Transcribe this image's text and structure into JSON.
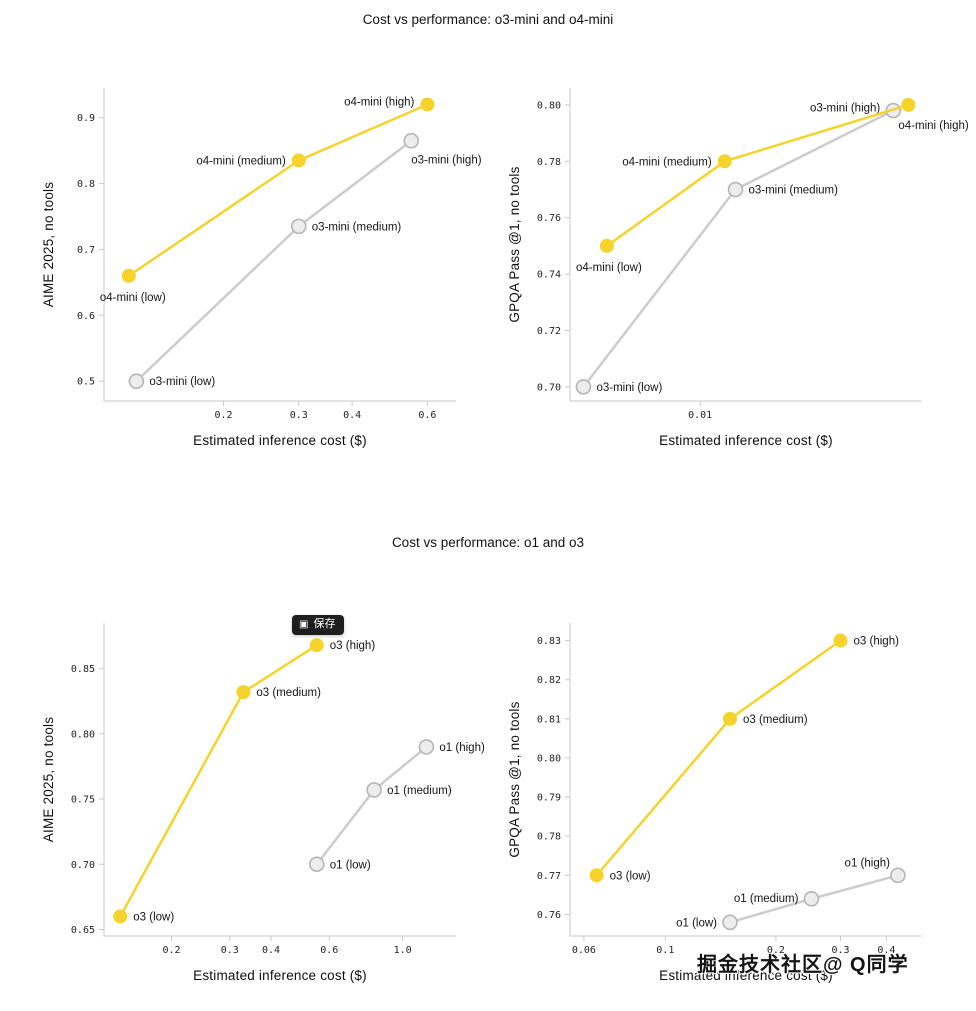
{
  "page": {
    "title_top": "Cost vs performance: o3-mini and o4-mini",
    "title_bottom": "Cost vs performance: o1 and o3",
    "save_badge": {
      "label": "保存"
    },
    "watermark": "掘金技术社区@ Q同学"
  },
  "colors": {
    "yellow": "#f6d32b",
    "gray_line": "#cccccc",
    "gray_fill": "#ededed",
    "gray_stroke": "#b5b5b5",
    "axis": "#c9c9c9",
    "text": "#111111"
  },
  "chart_data": [
    {
      "type": "line",
      "ylabel": "AIME 2025, no tools",
      "xlabel": "Estimated inference cost ($)",
      "x_scale": "log",
      "xlim": [
        0.105,
        0.7
      ],
      "ylim": [
        0.47,
        0.945
      ],
      "x_ticks": [
        0.2,
        0.3,
        0.4,
        0.6
      ],
      "x_tick_labels": [
        "0.2",
        "0.3",
        "0.4",
        "0.6"
      ],
      "y_ticks": [
        0.9,
        0.8,
        0.7,
        0.6,
        0.5
      ],
      "y_tick_labels": [
        "0.9",
        "0.8",
        "0.7",
        "0.6",
        "0.5"
      ],
      "grid": false,
      "legend": "point-labels",
      "series": [
        {
          "name": "o3-mini",
          "palette": "gray",
          "points": [
            {
              "x": 0.125,
              "y": 0.5,
              "label": "o3-mini (low)",
              "anchor": "start",
              "dx": 13,
              "dy": 4
            },
            {
              "x": 0.3,
              "y": 0.735,
              "label": "o3-mini (medium)",
              "anchor": "start",
              "dx": 13,
              "dy": 4
            },
            {
              "x": 0.55,
              "y": 0.865,
              "label": "o3-mini (high)",
              "anchor": "start",
              "dx": 0,
              "dy": 23
            }
          ]
        },
        {
          "name": "o4-mini",
          "palette": "yellow",
          "points": [
            {
              "x": 0.12,
              "y": 0.66,
              "label": "o4-mini (low)",
              "anchor": "middle",
              "dx": 4,
              "dy": 25
            },
            {
              "x": 0.3,
              "y": 0.835,
              "label": "o4-mini (medium)",
              "anchor": "end",
              "dx": -13,
              "dy": 4
            },
            {
              "x": 0.6,
              "y": 0.92,
              "label": "o4-mini (high)",
              "anchor": "end",
              "dx": -13,
              "dy": 1
            }
          ]
        }
      ]
    },
    {
      "type": "line",
      "ylabel": "GPQA Pass @1, no tools",
      "xlabel": "Estimated inference cost ($)",
      "x_scale": "log",
      "xlim": [
        0.0038,
        0.052
      ],
      "ylim": [
        0.695,
        0.806
      ],
      "x_ticks": [
        0.01
      ],
      "x_tick_labels": [
        "0.01"
      ],
      "y_ticks": [
        0.8,
        0.78,
        0.76,
        0.74,
        0.72,
        0.7
      ],
      "y_tick_labels": [
        "0.80",
        "0.78",
        "0.76",
        "0.74",
        "0.72",
        "0.70"
      ],
      "grid": false,
      "legend": "point-labels",
      "series": [
        {
          "name": "o3-mini",
          "palette": "gray",
          "points": [
            {
              "x": 0.0042,
              "y": 0.7,
              "label": "o3-mini (low)",
              "anchor": "start",
              "dx": 13,
              "dy": 4
            },
            {
              "x": 0.013,
              "y": 0.77,
              "label": "o3-mini (medium)",
              "anchor": "start",
              "dx": 13,
              "dy": 4
            },
            {
              "x": 0.042,
              "y": 0.798,
              "label": "o3-mini (high)",
              "anchor": "end",
              "dx": -13,
              "dy": 1
            }
          ]
        },
        {
          "name": "o4-mini",
          "palette": "yellow",
          "points": [
            {
              "x": 0.005,
              "y": 0.75,
              "label": "o4-mini (low)",
              "anchor": "middle",
              "dx": 2,
              "dy": 25
            },
            {
              "x": 0.012,
              "y": 0.78,
              "label": "o4-mini (medium)",
              "anchor": "end",
              "dx": -13,
              "dy": 4
            },
            {
              "x": 0.047,
              "y": 0.8,
              "label": "o4-mini (high)",
              "anchor": "start",
              "dx": -10,
              "dy": 24
            }
          ]
        }
      ]
    },
    {
      "type": "line",
      "ylabel": "AIME 2025, no tools",
      "xlabel": "Estimated inference cost ($)",
      "x_scale": "log",
      "xlim": [
        0.125,
        1.45
      ],
      "ylim": [
        0.645,
        0.885
      ],
      "x_ticks": [
        0.2,
        0.3,
        0.4,
        0.6,
        1.0
      ],
      "x_tick_labels": [
        "0.2",
        "0.3",
        "0.4",
        "0.6",
        "1.0"
      ],
      "y_ticks": [
        0.85,
        0.8,
        0.75,
        0.7,
        0.65
      ],
      "y_tick_labels": [
        "0.85",
        "0.80",
        "0.75",
        "0.70",
        "0.65"
      ],
      "grid": false,
      "legend": "point-labels",
      "series": [
        {
          "name": "o1",
          "palette": "gray",
          "points": [
            {
              "x": 0.55,
              "y": 0.7,
              "label": "o1 (low)",
              "anchor": "start",
              "dx": 13,
              "dy": 4
            },
            {
              "x": 0.82,
              "y": 0.757,
              "label": "o1 (medium)",
              "anchor": "start",
              "dx": 13,
              "dy": 4
            },
            {
              "x": 1.18,
              "y": 0.79,
              "label": "o1 (high)",
              "anchor": "start",
              "dx": 13,
              "dy": 4
            }
          ]
        },
        {
          "name": "o3",
          "palette": "yellow",
          "points": [
            {
              "x": 0.14,
              "y": 0.66,
              "label": "o3 (low)",
              "anchor": "start",
              "dx": 13,
              "dy": 4
            },
            {
              "x": 0.33,
              "y": 0.832,
              "label": "o3 (medium)",
              "anchor": "start",
              "dx": 13,
              "dy": 4
            },
            {
              "x": 0.55,
              "y": 0.868,
              "label": "o3 (high)",
              "anchor": "start",
              "dx": 13,
              "dy": 4
            }
          ]
        }
      ]
    },
    {
      "type": "line",
      "ylabel": "GPQA Pass @1, no tools",
      "xlabel": "Estimated inference cost ($)",
      "x_scale": "log",
      "xlim": [
        0.055,
        0.5
      ],
      "ylim": [
        0.7545,
        0.8345
      ],
      "x_ticks": [
        0.06,
        0.1,
        0.2,
        0.3,
        0.4
      ],
      "x_tick_labels": [
        "0.06",
        "0.1",
        "0.2",
        "0.3",
        "0.4"
      ],
      "y_ticks": [
        0.83,
        0.82,
        0.81,
        0.8,
        0.79,
        0.78,
        0.77,
        0.76
      ],
      "y_tick_labels": [
        "0.83",
        "0.82",
        "0.81",
        "0.80",
        "0.79",
        "0.78",
        "0.77",
        "0.76"
      ],
      "grid": false,
      "legend": "point-labels",
      "series": [
        {
          "name": "o1",
          "palette": "gray",
          "points": [
            {
              "x": 0.15,
              "y": 0.758,
              "label": "o1 (low)",
              "anchor": "end",
              "dx": -13,
              "dy": 4
            },
            {
              "x": 0.25,
              "y": 0.764,
              "label": "o1 (medium)",
              "anchor": "end",
              "dx": -13,
              "dy": 3
            },
            {
              "x": 0.43,
              "y": 0.77,
              "label": "o1 (high)",
              "anchor": "end",
              "dx": -8,
              "dy": -9
            }
          ]
        },
        {
          "name": "o3",
          "palette": "yellow",
          "points": [
            {
              "x": 0.065,
              "y": 0.77,
              "label": "o3 (low)",
              "anchor": "start",
              "dx": 13,
              "dy": 4
            },
            {
              "x": 0.15,
              "y": 0.81,
              "label": "o3 (medium)",
              "anchor": "start",
              "dx": 13,
              "dy": 4
            },
            {
              "x": 0.3,
              "y": 0.83,
              "label": "o3 (high)",
              "anchor": "start",
              "dx": 13,
              "dy": 4
            }
          ]
        }
      ]
    }
  ]
}
